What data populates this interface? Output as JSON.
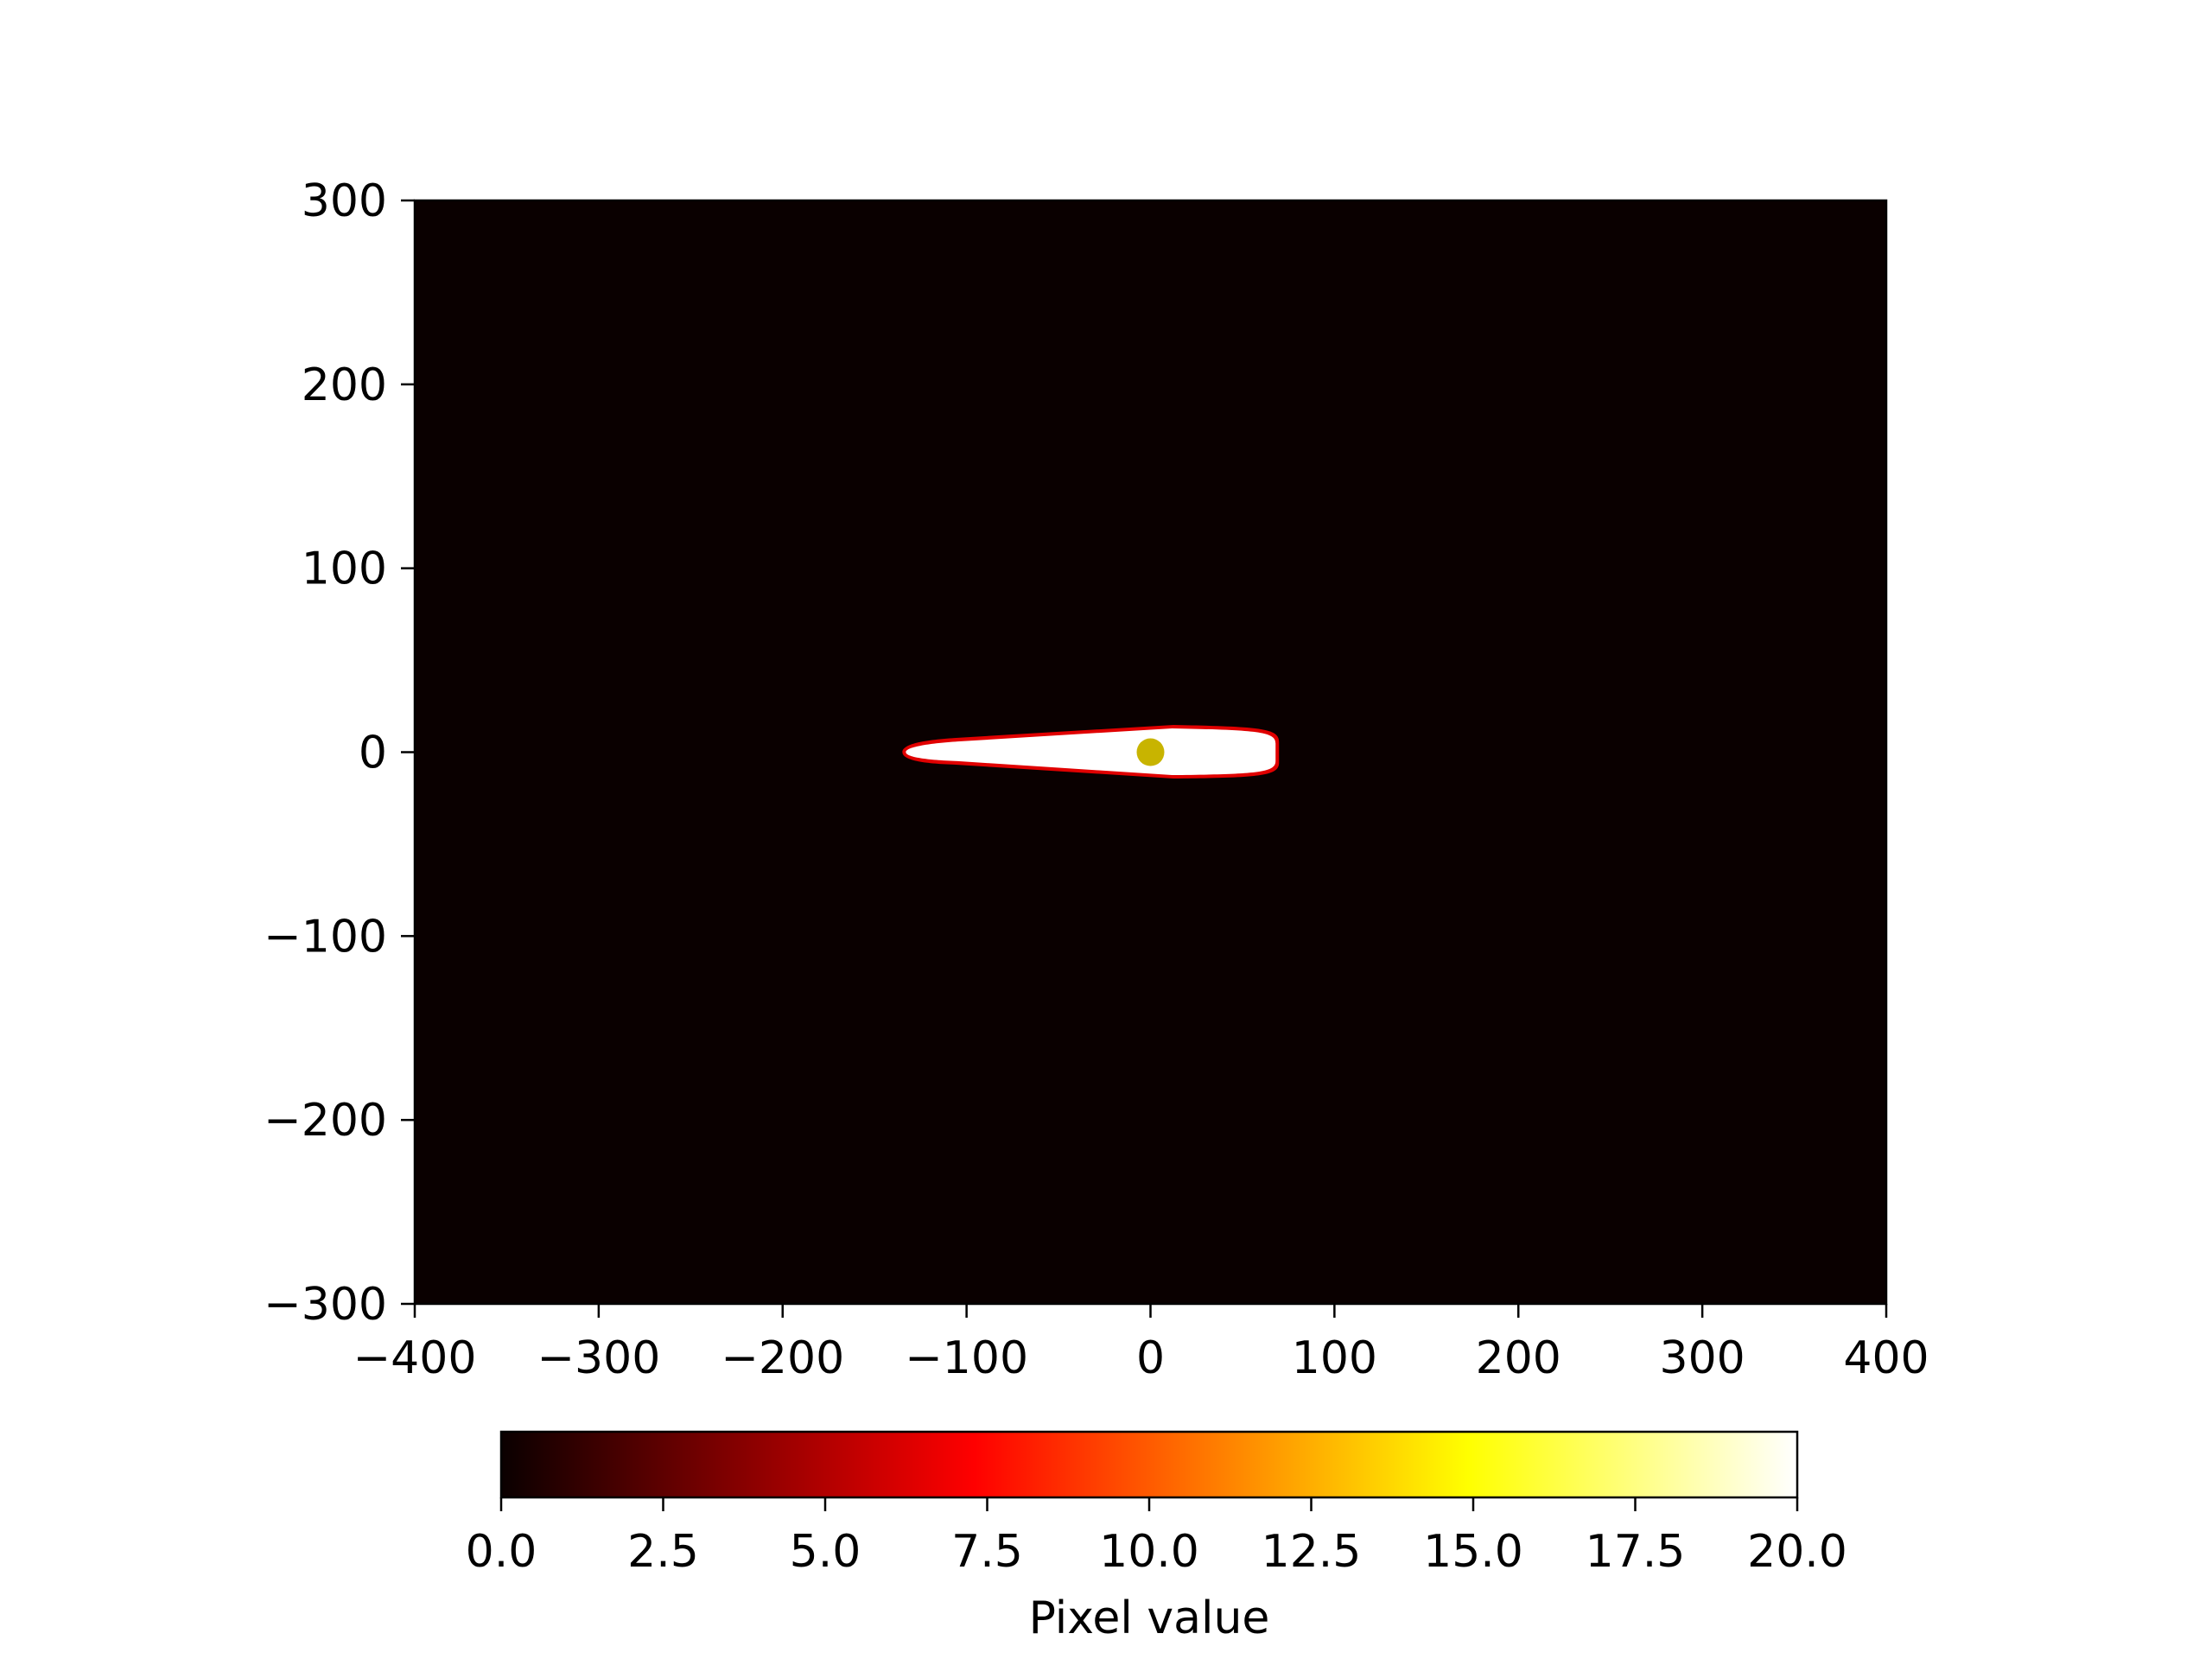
{
  "chart_data": {
    "type": "heatmap",
    "title": "",
    "xlabel": "",
    "ylabel": "",
    "xlim": [
      -400,
      400
    ],
    "ylim": [
      -300,
      300
    ],
    "x_ticks": [
      -400,
      -300,
      -200,
      -100,
      0,
      100,
      200,
      300,
      400
    ],
    "x_tick_labels": [
      "−400",
      "−300",
      "−200",
      "−100",
      "0",
      "100",
      "200",
      "300",
      "400"
    ],
    "y_ticks": [
      300,
      200,
      100,
      0,
      -100,
      -200,
      -300
    ],
    "y_tick_labels": [
      "300",
      "200",
      "100",
      "0",
      "−100",
      "−200",
      "−300"
    ],
    "grid": false,
    "background_color": "#0a0000",
    "colormap": "hot",
    "source": {
      "description": "elongated saturated streak",
      "x_range": [
        -133,
        68
      ],
      "y_half_width_left": 3,
      "y_half_width_right": 12,
      "core_color": "#ffffff",
      "edge_color": "#e00000"
    },
    "marker": {
      "x": 0,
      "y": 0,
      "color": "#c8b400"
    },
    "colorbar": {
      "label": "Pixel value",
      "orientation": "horizontal",
      "placement": "bottom",
      "range": [
        0,
        20
      ],
      "ticks": [
        0,
        2.5,
        5,
        7.5,
        10,
        12.5,
        15,
        17.5,
        20
      ],
      "tick_labels": [
        "0.0",
        "2.5",
        "5.0",
        "7.5",
        "10.0",
        "12.5",
        "15.0",
        "17.5",
        "20.0"
      ]
    }
  }
}
